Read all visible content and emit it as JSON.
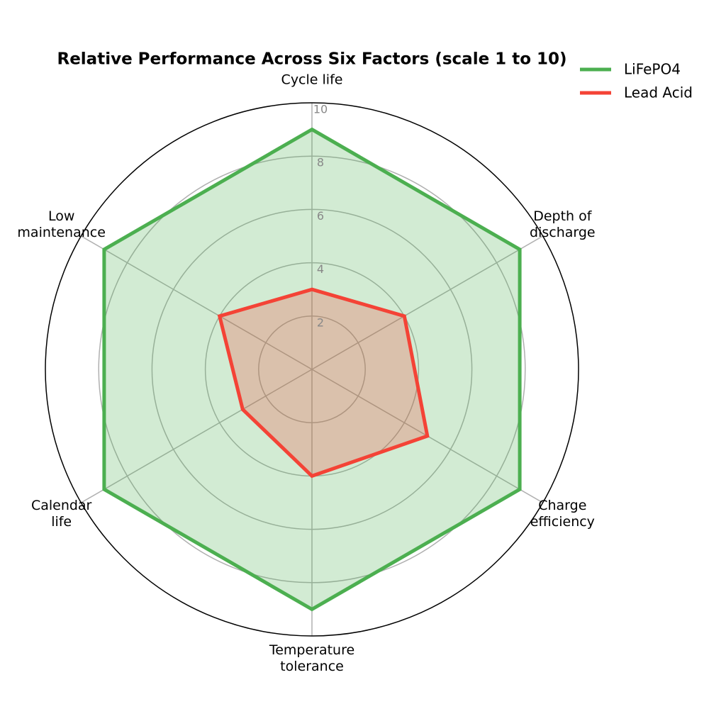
{
  "chart_data": {
    "type": "radar",
    "title": "Relative Performance Across Six Factors (scale 1 to 10)",
    "categories": [
      "Cycle life",
      "Depth of\ndischarge",
      "Charge\nefficiency",
      "Temperature\ntolerance",
      "Calendar\nlife",
      "Low\nmaintenance"
    ],
    "series": [
      {
        "name": "LiFePO4",
        "color": "#4caf50",
        "values": [
          9,
          9,
          9,
          9,
          9,
          9
        ]
      },
      {
        "name": "Lead Acid",
        "color": "#f44336",
        "values": [
          3,
          4,
          5,
          4,
          3,
          4
        ]
      }
    ],
    "ylim": [
      0,
      10
    ],
    "yticks": [
      2,
      4,
      6,
      8,
      10
    ],
    "grid": true
  }
}
